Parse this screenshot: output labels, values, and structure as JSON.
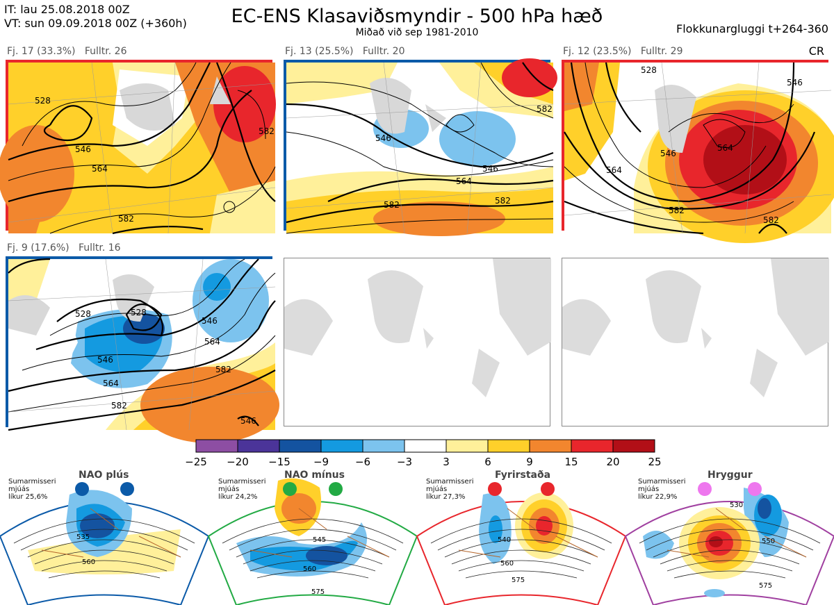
{
  "header": {
    "it_line": "IT: lau 25.08.2018 00Z",
    "vt_line": "VT: sun 09.09.2018 00Z  (+360h)",
    "title": "EC-ENS Klasaviðsmyndir - 500 hPa hæð",
    "subtitle": "Miðað við sep 1981-2010",
    "window": "Flokkunargluggi t+264-360",
    "corner": "CR"
  },
  "panels": [
    {
      "label": "Fj. 17 (33.3%)   Fulltr. 26",
      "border": "#e8262c",
      "contours": [
        "528",
        "546",
        "564",
        "582",
        "582"
      ]
    },
    {
      "label": "Fj. 13 (25.5%)   Fulltr. 20",
      "border": "#0b5aa8",
      "contours": [
        "546",
        "546",
        "564",
        "582",
        "582",
        "582"
      ]
    },
    {
      "label": "Fj. 12 (23.5%)   Fulltr. 29",
      "border": "#e8262c",
      "contours": [
        "528",
        "546",
        "546",
        "564",
        "564",
        "582",
        "582"
      ]
    },
    {
      "label": "Fj. 9 (17.6%)   Fulltr. 16",
      "border": "#0b5aa8",
      "contours": [
        "528",
        "528",
        "546",
        "546",
        "564",
        "564",
        "582",
        "582",
        "546"
      ]
    }
  ],
  "colorbar": {
    "ticks": [
      "−25",
      "−20",
      "−15",
      "−9",
      "−6",
      "−3",
      "3",
      "6",
      "9",
      "15",
      "20",
      "25"
    ],
    "colors": [
      "#8d4ea3",
      "#4b3499",
      "#1453a0",
      "#149ae0",
      "#7cc3ee",
      "#ffffff",
      "#fff09a",
      "#ffd02a",
      "#f2862e",
      "#e8262c",
      "#b20f17"
    ]
  },
  "regimes": [
    {
      "title": "NAO plús",
      "info": [
        "Sumarmisseri",
        "mjúás",
        "líkur 25,6%"
      ],
      "color": "#0b5aa8",
      "contours": [
        "535",
        "560"
      ]
    },
    {
      "title": "NAO mínus",
      "info": [
        "Sumarmisseri",
        "mjúás",
        "líkur 24,2%"
      ],
      "color": "#22aa44",
      "contours": [
        "545",
        "560",
        "575"
      ]
    },
    {
      "title": "Fyrirstaða",
      "info": [
        "Sumarmisseri",
        "mjúás",
        "líkur 27,3%"
      ],
      "color": "#e8262c",
      "contours": [
        "540",
        "560",
        "575"
      ]
    },
    {
      "title": "Hryggur",
      "info": [
        "Sumarmisseri",
        "mjúás",
        "líkur 22,9%"
      ],
      "color": "#a040a0",
      "contours": [
        "530",
        "550",
        "575"
      ]
    }
  ]
}
